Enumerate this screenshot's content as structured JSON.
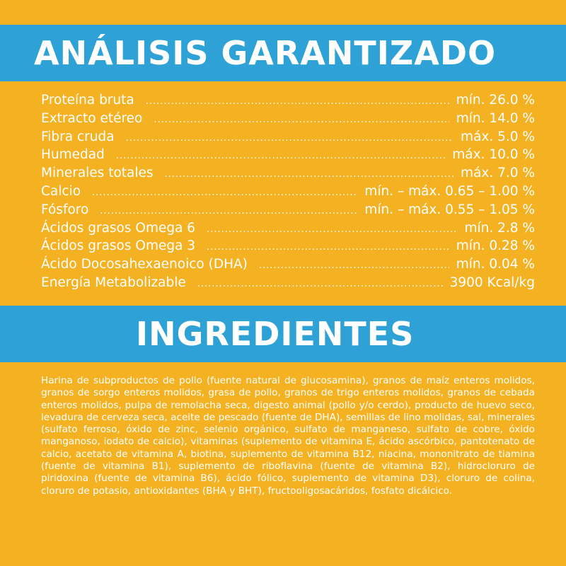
{
  "analysis": {
    "title": "ANÁLISIS GARANTIZADO",
    "rows": [
      {
        "label": "Proteína bruta",
        "value": "mín. 26.0 %"
      },
      {
        "label": "Extracto etéreo",
        "value": "mín.  14.0 %"
      },
      {
        "label": "Fibra cruda",
        "value": "máx. 5.0 %"
      },
      {
        "label": "Humedad",
        "value": "máx. 10.0 %"
      },
      {
        "label": "Minerales totales",
        "value": "máx. 7.0 %"
      },
      {
        "label": "Calcio",
        "value": "mín. – máx. 0.65 – 1.00 %"
      },
      {
        "label": "Fósforo",
        "value": "mín. – máx. 0.55 – 1.05 %"
      },
      {
        "label": "Ácidos grasos Omega 6",
        "value": "mín. 2.8 %"
      },
      {
        "label": "Ácidos grasos Omega 3",
        "value": "mín. 0.28 %"
      },
      {
        "label": "Ácido Docosahexaenoico (DHA)",
        "value": "mín. 0.04 %"
      },
      {
        "label": "Energía Metabolizable",
        "value": "3900 Kcal/kg"
      }
    ]
  },
  "ingredients": {
    "title": "INGREDIENTES",
    "text": "Harina de subproductos de pollo (fuente natural de glucosamina), granos de maíz enteros molidos, granos de sorgo enteros molidos, grasa de pollo, granos de trigo enteros molidos, granos de cebada enteros molidos, pulpa de remolacha seca, digesto animal (pollo y/o cerdo), producto de huevo seco, levadura de cerveza seca, aceite de pescado (fuente de DHA), semillas de lino molidas, sal, minerales (sulfato ferroso, óxido de zinc, selenio orgánico, sulfato de manganeso, sulfato de cobre, óxido manganoso, iodato de calcio), vitaminas (suplemento de vitamina E, ácido ascórbico, pantotenato de calcio, acetato de vitamina A, biotina, suplemento de vitamina B12, niacina, mononitrato de tiamina (fuente de vitamina B1), suplemento de riboflavina (fuente de vitamina B2), hidrocloruro de piridoxina (fuente de vitamina B6), ácido fólico, suplemento de vitamina D3), cloruro de colina, cloruro de potasio, antioxidantes (BHA y BHT), fructooligosacáridos, fosfato dicálcico."
  },
  "colors": {
    "background": "#f4b223",
    "band": "#2ea2d6",
    "text": "#ffffff"
  }
}
